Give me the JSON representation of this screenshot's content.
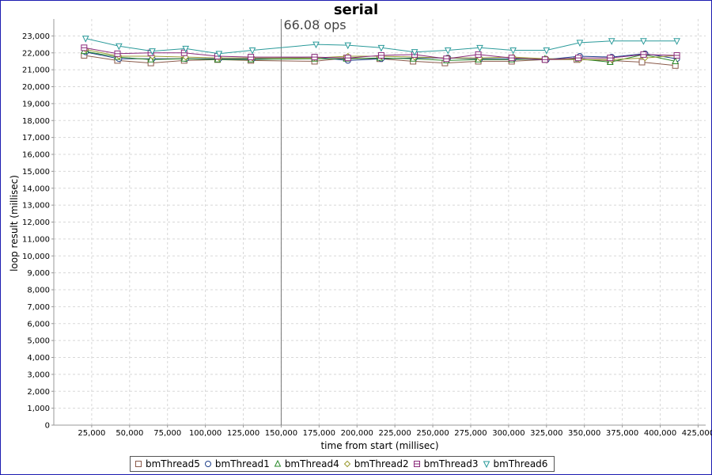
{
  "chart_data": {
    "type": "line",
    "title": "serial",
    "annotation": {
      "text": "66.08 ops",
      "x": 150000
    },
    "xlabel": "time from start (millisec)",
    "ylabel": "loop result (millisec)",
    "xlim": [
      0,
      430000
    ],
    "ylim": [
      0,
      24000
    ],
    "x_ticks": [
      25000,
      50000,
      75000,
      100000,
      125000,
      150000,
      175000,
      200000,
      225000,
      250000,
      275000,
      300000,
      325000,
      350000,
      375000,
      400000,
      425000
    ],
    "y_ticks": [
      0,
      1000,
      2000,
      3000,
      4000,
      5000,
      6000,
      7000,
      8000,
      9000,
      10000,
      11000,
      12000,
      13000,
      14000,
      15000,
      16000,
      17000,
      18000,
      19000,
      20000,
      21000,
      22000,
      23000
    ],
    "grid": true,
    "legend_position": "bottom",
    "series": [
      {
        "name": "bmThread5",
        "color": "#8b5a4a",
        "marker": "square",
        "x": [
          20000,
          42000,
          64000,
          86000,
          108000,
          130000,
          172000,
          193000,
          215000,
          237000,
          258000,
          280000,
          302000,
          324000,
          345000,
          367000,
          388000,
          410000
        ],
        "y": [
          21850,
          21550,
          21400,
          21550,
          21600,
          21550,
          21500,
          21700,
          21650,
          21500,
          21400,
          21500,
          21500,
          21600,
          21600,
          21550,
          21450,
          21250
        ]
      },
      {
        "name": "bmThread1",
        "color": "#1f3f8a",
        "marker": "circle",
        "x": [
          21000,
          43000,
          65000,
          87000,
          109000,
          131000,
          172000,
          194000,
          216000,
          238000,
          260000,
          281000,
          303000,
          325000,
          347000,
          368000,
          390000,
          411000
        ],
        "y": [
          22050,
          21650,
          21650,
          21650,
          21650,
          21650,
          21750,
          21550,
          21650,
          21700,
          21700,
          21650,
          21650,
          21600,
          21800,
          21750,
          21950,
          21650
        ]
      },
      {
        "name": "bmThread4",
        "color": "#2a8a2a",
        "marker": "triangle-up",
        "x": [
          20000,
          42000,
          64000,
          86000,
          108000,
          130000,
          172000,
          193000,
          215000,
          237000,
          259000,
          280000,
          302000,
          324000,
          346000,
          367000,
          389000,
          410000
        ],
        "y": [
          22100,
          21750,
          21600,
          21650,
          21600,
          21600,
          21650,
          21650,
          21700,
          21650,
          21550,
          21600,
          21600,
          21650,
          21650,
          21450,
          21900,
          21500
        ]
      },
      {
        "name": "bmThread2",
        "color": "#9a9a30",
        "marker": "diamond",
        "x": [
          21000,
          43000,
          65000,
          87000,
          109000,
          131000,
          172000,
          194000,
          216000,
          238000,
          260000,
          281000,
          303000,
          325000,
          347000,
          368000,
          390000,
          411000
        ],
        "y": [
          22200,
          21800,
          21800,
          21750,
          21700,
          21700,
          21700,
          21800,
          21800,
          21750,
          21700,
          21700,
          21750,
          21650,
          21600,
          21600,
          21700,
          21850
        ]
      },
      {
        "name": "bmThread3",
        "color": "#8a2a7a",
        "marker": "square-cross",
        "x": [
          20000,
          42000,
          64000,
          86000,
          108000,
          130000,
          172000,
          194000,
          216000,
          238000,
          259000,
          280000,
          302000,
          324000,
          346000,
          367000,
          389000,
          411000
        ],
        "y": [
          22300,
          21950,
          22000,
          22000,
          21800,
          21750,
          21750,
          21700,
          21850,
          21900,
          21650,
          21900,
          21700,
          21600,
          21700,
          21700,
          21900,
          21850
        ]
      },
      {
        "name": "bmThread6",
        "color": "#2a9a9a",
        "marker": "triangle-down",
        "x": [
          21000,
          43000,
          65000,
          87000,
          109000,
          131000,
          173000,
          194000,
          216000,
          238000,
          260000,
          281000,
          303000,
          325000,
          347000,
          368000,
          389000,
          411000
        ],
        "y": [
          22850,
          22400,
          22100,
          22250,
          21950,
          22150,
          22500,
          22450,
          22300,
          22050,
          22150,
          22300,
          22150,
          22150,
          22600,
          22700,
          22700,
          22700
        ]
      }
    ]
  }
}
